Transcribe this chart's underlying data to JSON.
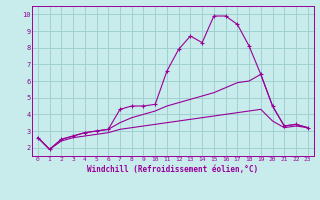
{
  "x": [
    0,
    1,
    2,
    3,
    4,
    5,
    6,
    7,
    8,
    9,
    10,
    11,
    12,
    13,
    14,
    15,
    16,
    17,
    18,
    19,
    20,
    21,
    22,
    23
  ],
  "line1": [
    2.6,
    1.9,
    2.5,
    2.7,
    2.9,
    3.0,
    3.1,
    4.3,
    4.5,
    4.5,
    4.6,
    6.6,
    7.9,
    8.7,
    8.3,
    9.9,
    9.9,
    9.4,
    8.1,
    6.4,
    4.5,
    3.3,
    3.4,
    3.2
  ],
  "line2": [
    2.6,
    1.9,
    2.5,
    2.7,
    2.9,
    3.0,
    3.1,
    3.5,
    3.8,
    4.0,
    4.2,
    4.5,
    4.7,
    4.9,
    5.1,
    5.3,
    5.6,
    5.9,
    6.0,
    6.4,
    4.5,
    3.3,
    3.4,
    3.2
  ],
  "line3": [
    2.6,
    1.9,
    2.4,
    2.6,
    2.7,
    2.8,
    2.9,
    3.1,
    3.2,
    3.3,
    3.4,
    3.5,
    3.6,
    3.7,
    3.8,
    3.9,
    4.0,
    4.1,
    4.2,
    4.3,
    3.6,
    3.2,
    3.3,
    3.2
  ],
  "color": "#990099",
  "bg_color": "#c8ecec",
  "grid_color": "#a0d0d0",
  "xlabel": "Windchill (Refroidissement éolien,°C)",
  "xlim": [
    -0.5,
    23.5
  ],
  "ylim": [
    1.5,
    10.5
  ],
  "yticks": [
    2,
    3,
    4,
    5,
    6,
    7,
    8,
    9,
    10
  ],
  "xticks": [
    0,
    1,
    2,
    3,
    4,
    5,
    6,
    7,
    8,
    9,
    10,
    11,
    12,
    13,
    14,
    15,
    16,
    17,
    18,
    19,
    20,
    21,
    22,
    23
  ]
}
